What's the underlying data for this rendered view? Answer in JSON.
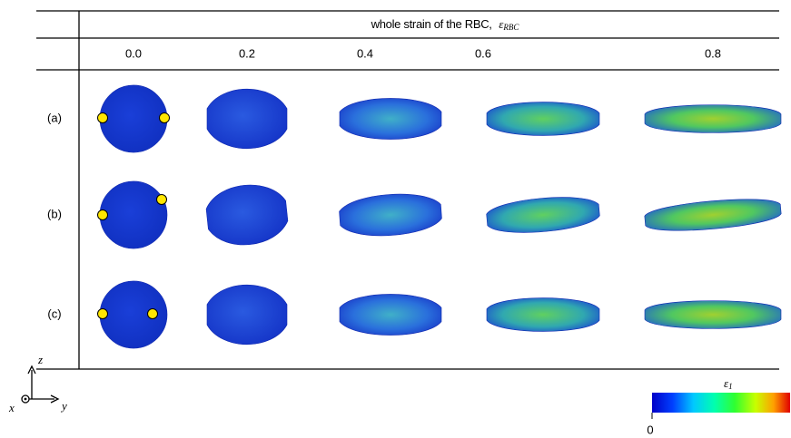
{
  "header": {
    "text": "whole strain of the RBC,",
    "symbol": "ε",
    "subscript": "RBC"
  },
  "table": {
    "columns": [
      "0.0",
      "0.2",
      "0.4",
      "0.6",
      "0.8"
    ],
    "rows": [
      "(a)",
      "(b)",
      "(c)"
    ]
  },
  "colorbar": {
    "symbol": "ε",
    "subscript": "1",
    "min_label": "0"
  },
  "axes": {
    "z": "z",
    "x": "x",
    "y": "y"
  }
}
